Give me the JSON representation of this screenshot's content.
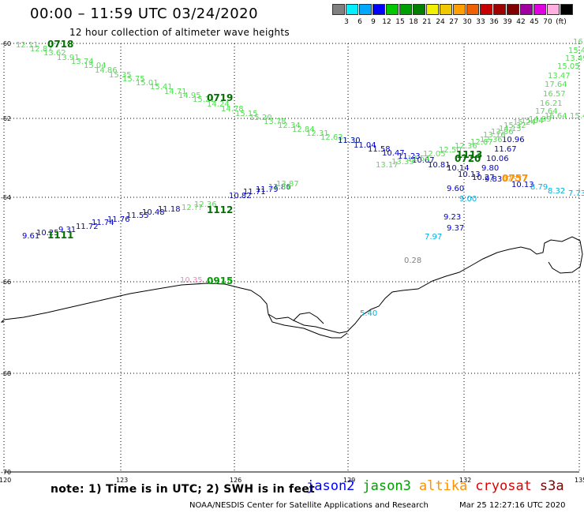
{
  "title": "00:00 – 11:59 UTC 03/24/2020",
  "subtitle": "12 hour collection of altimeter wave heights",
  "legend": {
    "colors": [
      "#808080",
      "#00f0ff",
      "#00a8ff",
      "#0000ff",
      "#00c800",
      "#00a000",
      "#008000",
      "#f0f000",
      "#f0c800",
      "#ffa000",
      "#f06000",
      "#c80000",
      "#a00000",
      "#800000",
      "#a000a0",
      "#e000e0",
      "#ffb0e0",
      "#000000"
    ],
    "labels": [
      "3",
      "6",
      "9",
      "12",
      "15",
      "18",
      "21",
      "24",
      "27",
      "30",
      "33",
      "36",
      "39",
      "42",
      "45",
      "70",
      "(ft)"
    ]
  },
  "axes": {
    "lat_ticks": [
      "-60",
      "-62",
      "-64",
      "-66",
      "-68",
      "-70"
    ],
    "lon_ticks": [
      "120",
      "123",
      "126",
      "129",
      "132",
      "135"
    ]
  },
  "tracks": [
    {
      "sat": "jason3",
      "color": "#50e050",
      "points": [
        "12.11",
        "12.87",
        "13.62",
        "13.91",
        "13.74",
        "15.04",
        "14.86",
        "15.35",
        "15.75",
        "15.01",
        "15.41",
        "14.71",
        "14.95",
        "15.21",
        "14.24",
        "14.78",
        "15.15",
        "15.20",
        "13.78",
        "12.34",
        "12.84",
        "12.31",
        "12.63",
        "11.30"
      ]
    },
    {
      "sat": "jason2",
      "color": "#0000c8",
      "points": [
        "11.30",
        "11.04",
        "11.58",
        "10.47",
        "11.23",
        "10.67",
        "10.81",
        "10.14",
        "10.13",
        "10.27",
        "9.80",
        "9.83",
        "10.06",
        "11.67",
        "10.96"
      ]
    },
    {
      "sat": "jason3",
      "color": "#50e050",
      "points": [
        "13.17",
        "13.39",
        "12.54",
        "12.05",
        "12.50",
        "12.36",
        "12.67",
        "12.36",
        "13.16",
        "13.86",
        "14.13",
        "15.32",
        "15.24",
        "15.04",
        "14.99",
        "16.64",
        "17.64",
        "16.21",
        "16.57",
        "17.64",
        "13.47",
        "15.05",
        "13.49",
        "15.46",
        "16.20",
        "15.49",
        "16.36",
        "16.?",
        "15."
      ]
    },
    {
      "sat": "jason2",
      "color": "#0000c8",
      "points": [
        "9.61",
        "10.25",
        "9.31",
        "11.72",
        "11.74",
        "11.76",
        "11.55",
        "10.48",
        "11.18",
        "10.82",
        "11.71",
        "11.79",
        "11.86"
      ]
    },
    {
      "sat": "jason3",
      "color": "#50e050",
      "points": [
        "12.??",
        "12.36",
        "12.34",
        "13.87"
      ]
    },
    {
      "sat": "jason2",
      "color": "#0000c8",
      "points": [
        "9.60",
        "9.23",
        "9.37",
        "10.13"
      ]
    },
    {
      "sat": "s3a",
      "color": "#00b0e0",
      "points": [
        "7.97",
        "9.00",
        "8.79",
        "8.32",
        "7.73",
        "5.40"
      ]
    },
    {
      "sat": "cryosat",
      "color": "#ff80c0",
      "points": [
        "10.35"
      ]
    },
    {
      "sat": "altika",
      "color": "#ffa000",
      "points": [
        "0757"
      ]
    },
    {
      "sat": "grey",
      "color": "#808080",
      "points": [
        "0.28"
      ]
    }
  ],
  "time_labels": [
    "0718",
    "0719",
    "0720",
    "1113",
    "1112",
    "1111",
    "0915",
    "0757"
  ],
  "note": "note: 1) Time is in UTC; 2) SWH is in feet",
  "satellites": [
    {
      "name": "jason2",
      "color": "#0000ff"
    },
    {
      "name": "jason3",
      "color": "#00a000"
    },
    {
      "name": "altika",
      "color": "#ff9000"
    },
    {
      "name": "cryosat",
      "color": "#e00000"
    },
    {
      "name": "s3a",
      "color": "#800000"
    }
  ],
  "credit": "NOAA/NESDIS Center for Satellite Applications and Research",
  "credit_time": "Mar 25 12:27:16 UTC 2020"
}
